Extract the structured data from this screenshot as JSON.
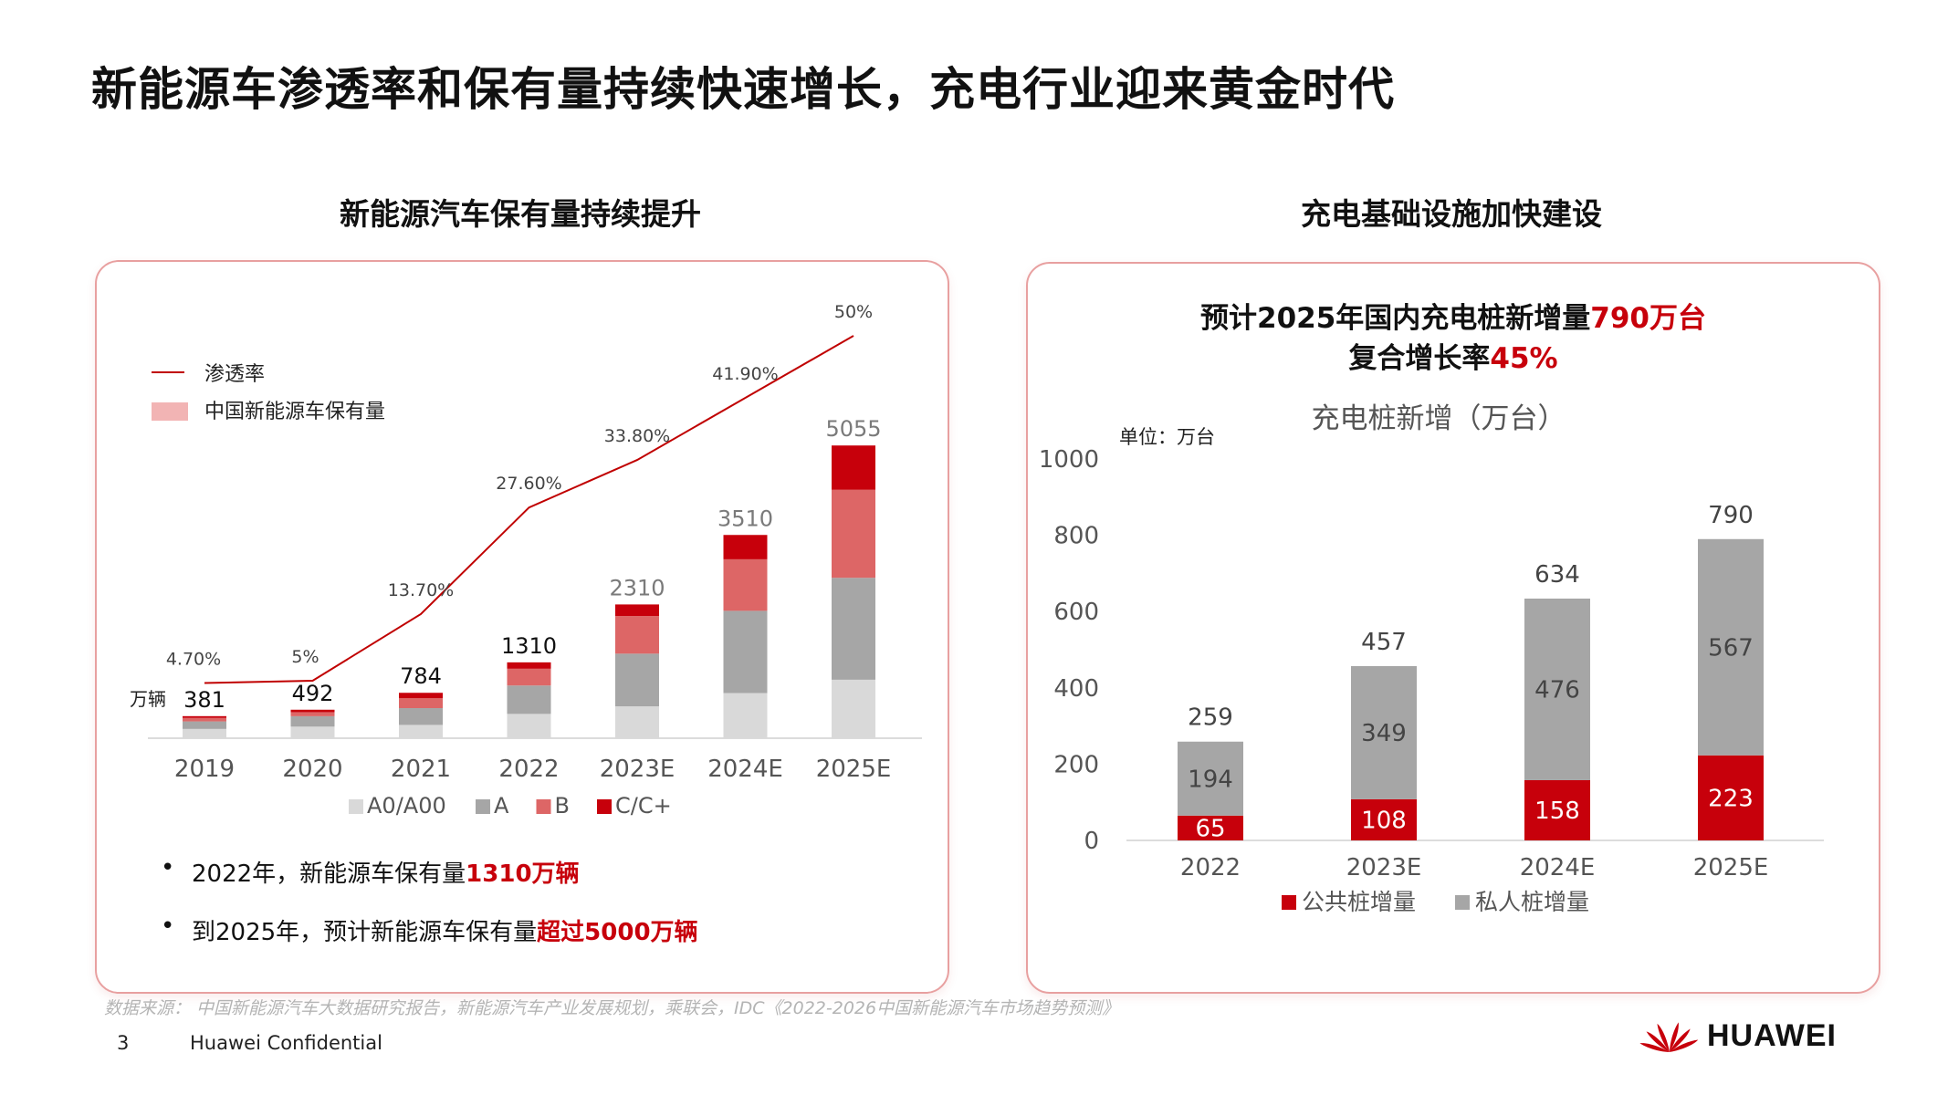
{
  "title": "新能源车渗透率和保有量持续快速增长，充电行业迎来黄金时代",
  "left": {
    "panel_title": "新能源汽车保有量持续提升",
    "legend_line": "渗透率",
    "legend_area": "中国新能源车保有量",
    "unit": "万辆",
    "bullets": [
      {
        "text": "2022年，新能源车保有量",
        "highlight": "1310万辆"
      },
      {
        "text": "到2025年，预计新能源车保有量",
        "highlight": "超过5000万辆"
      }
    ]
  },
  "right": {
    "panel_title": "充电基础设施加快建设",
    "headline1_text": "预计2025年国内充电桩新增量",
    "headline1_highlight": "790万台",
    "headline2_text": "复合增长率",
    "headline2_highlight": "45%",
    "chart_title": "充电桩新增（万台）",
    "unit": "单位：万台"
  },
  "source": "数据来源： 中国新能源汽车大数据研究报告，新能源汽车产业发展规划，乘联会，IDC《2022-2026中国新能源汽车市场趋势预测》",
  "footer": {
    "page": "3",
    "confidential": "Huawei Confidential",
    "brand": "HUAWEI"
  },
  "colors": {
    "accent": "#c7000b",
    "light_red": "#dd6666",
    "grey": "#a6a6a6",
    "light_grey": "#d9d9d9",
    "line": "#c00000"
  },
  "chart_data": [
    {
      "type": "bar",
      "stacked": true,
      "categories": [
        "2019",
        "2020",
        "2021",
        "2022",
        "2023E",
        "2024E",
        "2025E"
      ],
      "series": [
        {
          "name": "A0/A00",
          "values": [
            160,
            200,
            230,
            420,
            550,
            780,
            1010
          ]
        },
        {
          "name": "A",
          "values": [
            130,
            180,
            290,
            490,
            910,
            1420,
            1760
          ]
        },
        {
          "name": "B",
          "values": [
            60,
            70,
            170,
            290,
            650,
            890,
            1520
          ]
        },
        {
          "name": "C/C+",
          "values": [
            31,
            42,
            94,
            110,
            200,
            420,
            765
          ]
        }
      ],
      "totals": [
        381,
        492,
        784,
        1310,
        2310,
        3510,
        5055
      ],
      "line_series": {
        "name": "渗透率",
        "values": [
          4.7,
          5,
          13.7,
          27.6,
          33.8,
          41.9,
          50
        ],
        "labels": [
          "4.70%",
          "5%",
          "13.70%",
          "27.60%",
          "33.80%",
          "41.90%",
          "50%"
        ]
      },
      "legend_position": "top-left",
      "ylim": [
        0,
        5200
      ]
    },
    {
      "type": "bar",
      "stacked": true,
      "title": "充电桩新增（万台）",
      "categories": [
        "2022",
        "2023E",
        "2024E",
        "2025E"
      ],
      "series": [
        {
          "name": "公共桩增量",
          "values": [
            65,
            108,
            158,
            223
          ]
        },
        {
          "name": "私人桩增量",
          "values": [
            194,
            349,
            476,
            567
          ]
        }
      ],
      "totals": [
        259,
        457,
        634,
        790
      ],
      "yticks": [
        "0",
        "200",
        "400",
        "600",
        "800",
        "1000"
      ],
      "ylim": [
        0,
        1000
      ],
      "grid": false,
      "legend_position": "bottom"
    }
  ]
}
